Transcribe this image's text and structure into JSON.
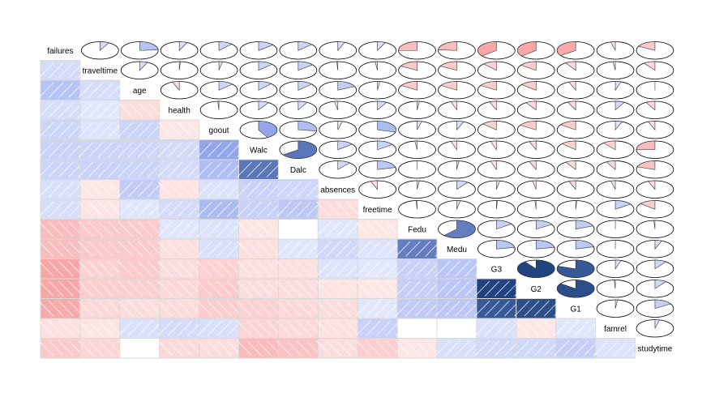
{
  "chart_data": {
    "type": "heatmap",
    "subtype": "corrgram",
    "lower_panel": "shade",
    "upper_panel": "pie",
    "diagonal_panel": "variable-name",
    "color_scale": {
      "negative": "#b2182b",
      "neutral": "#ffffff",
      "positive": "#08306b"
    },
    "variables": [
      "failures",
      "traveltime",
      "age",
      "health",
      "goout",
      "Walc",
      "Dalc",
      "absences",
      "freetime",
      "Fedu",
      "Medu",
      "G3",
      "G2",
      "G1",
      "famrel",
      "studytime"
    ],
    "correlations": [
      [
        1.0,
        0.08,
        0.24,
        0.07,
        0.12,
        0.14,
        0.13,
        0.06,
        0.07,
        -0.25,
        -0.24,
        -0.36,
        -0.36,
        -0.35,
        -0.04,
        -0.17
      ],
      [
        0.08,
        1.0,
        0.07,
        0.01,
        0.03,
        0.13,
        0.14,
        -0.01,
        -0.02,
        -0.17,
        -0.17,
        -0.12,
        -0.15,
        -0.09,
        -0.02,
        -0.1
      ],
      [
        0.24,
        0.07,
        1.0,
        -0.06,
        0.13,
        0.12,
        0.13,
        0.18,
        0.02,
        -0.16,
        -0.16,
        -0.16,
        -0.14,
        -0.06,
        0.05,
        -0.0
      ],
      [
        0.07,
        0.01,
        -0.06,
        1.0,
        -0.01,
        0.09,
        0.08,
        -0.03,
        0.08,
        0.02,
        -0.05,
        -0.06,
        -0.09,
        -0.07,
        0.08,
        -0.08
      ],
      [
        0.12,
        0.03,
        0.13,
        -0.01,
        1.0,
        0.42,
        0.27,
        0.04,
        0.29,
        0.04,
        0.06,
        -0.13,
        -0.16,
        -0.15,
        0.06,
        -0.06
      ],
      [
        0.14,
        0.13,
        0.12,
        0.09,
        0.42,
        1.0,
        0.65,
        0.14,
        0.15,
        -0.02,
        -0.05,
        -0.05,
        -0.06,
        -0.13,
        -0.11,
        -0.25
      ],
      [
        0.13,
        0.14,
        0.13,
        0.08,
        0.27,
        0.65,
        1.0,
        0.11,
        0.21,
        0.0,
        0.02,
        -0.05,
        -0.06,
        -0.09,
        -0.08,
        -0.2
      ],
      [
        0.06,
        -0.01,
        0.18,
        -0.03,
        0.04,
        0.14,
        0.11,
        1.0,
        -0.06,
        0.02,
        0.1,
        0.03,
        -0.03,
        -0.06,
        -0.04,
        -0.06
      ],
      [
        0.07,
        -0.02,
        0.02,
        0.08,
        0.29,
        0.15,
        0.21,
        -0.06,
        1.0,
        -0.01,
        0.03,
        0.01,
        -0.01,
        0.01,
        0.15,
        -0.14
      ],
      [
        -0.25,
        -0.17,
        -0.16,
        0.02,
        0.04,
        -0.02,
        0.0,
        0.02,
        -0.01,
        1.0,
        0.62,
        0.15,
        0.16,
        0.19,
        -0.0,
        -0.01
      ],
      [
        -0.24,
        -0.17,
        -0.16,
        -0.05,
        0.06,
        -0.05,
        0.02,
        0.1,
        0.03,
        0.62,
        1.0,
        0.22,
        0.22,
        0.21,
        -0.0,
        0.06
      ],
      [
        -0.36,
        -0.12,
        -0.16,
        -0.06,
        -0.13,
        -0.05,
        -0.05,
        0.03,
        0.01,
        0.15,
        0.22,
        1.0,
        0.9,
        0.8,
        0.05,
        0.1
      ],
      [
        -0.36,
        -0.15,
        -0.14,
        -0.09,
        -0.16,
        -0.06,
        -0.06,
        -0.03,
        -0.01,
        0.16,
        0.22,
        0.9,
        1.0,
        0.85,
        -0.01,
        0.1
      ],
      [
        -0.35,
        -0.09,
        -0.06,
        -0.07,
        -0.15,
        -0.13,
        -0.09,
        -0.06,
        0.01,
        0.19,
        0.21,
        0.8,
        0.85,
        1.0,
        0.02,
        0.16
      ],
      [
        -0.04,
        -0.02,
        0.05,
        0.08,
        0.06,
        -0.11,
        -0.08,
        -0.04,
        0.15,
        -0.0,
        -0.0,
        0.05,
        -0.01,
        0.02,
        1.0,
        0.04
      ],
      [
        -0.17,
        -0.1,
        -0.0,
        -0.08,
        -0.06,
        -0.25,
        -0.2,
        -0.06,
        -0.14,
        -0.01,
        0.06,
        0.1,
        0.1,
        0.16,
        0.04,
        1.0
      ]
    ]
  }
}
